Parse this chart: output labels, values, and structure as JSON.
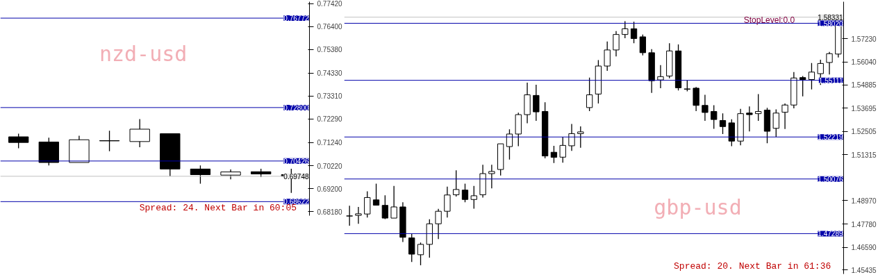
{
  "chart_data": [
    {
      "type": "candlestick",
      "categories": [
        null,
        null,
        null,
        null,
        null,
        null,
        null,
        null,
        null,
        null
      ],
      "ohlc": [
        [
          0.715,
          0.7164,
          0.7099,
          0.7125
        ],
        [
          0.7127,
          0.7146,
          0.7023,
          0.7036
        ],
        [
          0.7036,
          0.7155,
          0.7036,
          0.7137
        ],
        [
          0.7133,
          0.7177,
          0.7086,
          0.7132
        ],
        [
          0.7129,
          0.7229,
          0.7104,
          0.7184
        ],
        [
          0.7164,
          0.7164,
          0.6974,
          0.7007
        ],
        [
          0.7007,
          0.7023,
          0.6942,
          0.6982
        ],
        [
          0.698,
          0.7005,
          0.6961,
          0.6994
        ],
        [
          0.6995,
          0.7008,
          0.6971,
          0.6985
        ],
        [
          0.6982,
          0.7008,
          0.6901,
          0.6975
        ]
      ],
      "ylim": [
        0.68,
        0.775
      ],
      "yticks": [
        {
          "value": 0.7742,
          "label": "0.77420"
        },
        {
          "value": 0.764,
          "label": "0.76400"
        },
        {
          "value": 0.7538,
          "label": "0.75380"
        },
        {
          "value": 0.7433,
          "label": "0.74330"
        },
        {
          "value": 0.7331,
          "label": "0.73310"
        },
        {
          "value": 0.7229,
          "label": "0.72290"
        },
        {
          "value": 0.7124,
          "label": "0.71240"
        },
        {
          "value": 0.7022,
          "label": "0.70220"
        },
        {
          "value": 0.692,
          "label": "0.69200"
        },
        {
          "value": 0.6818,
          "label": "0.68180"
        }
      ],
      "ref_lines": [
        {
          "axis": "y",
          "value": 0.76772,
          "label": "0.76772",
          "color": "#0000aa"
        },
        {
          "axis": "y",
          "value": 0.728,
          "label": "0.72800",
          "color": "#0000aa"
        },
        {
          "axis": "y",
          "value": 0.70426,
          "label": "0.70426",
          "color": "#0000aa"
        },
        {
          "axis": "y",
          "value": 0.68622,
          "label": "0.68622",
          "color": "#0000aa"
        },
        {
          "axis": "y",
          "value": 0.69748,
          "label": "0.69748",
          "color": "#c0c0c0"
        }
      ],
      "annotations": [
        "nzd-usd",
        "Spread: 24. Next Bar in 60:05"
      ],
      "grid": false,
      "tick_labels": "y"
    },
    {
      "type": "candlestick",
      "categories": [
        null,
        null,
        null,
        null,
        null,
        null,
        null,
        null,
        null,
        null,
        null,
        null,
        null,
        null,
        null,
        null,
        null,
        null,
        null,
        null,
        null,
        null,
        null,
        null,
        null,
        null,
        null,
        null,
        null,
        null,
        null,
        null,
        null,
        null,
        null,
        null,
        null,
        null,
        null,
        null,
        null,
        null,
        null,
        null,
        null,
        null,
        null,
        null,
        null,
        null,
        null,
        null,
        null,
        null,
        null,
        null
      ],
      "ohlc": [
        [
          1.4819,
          1.4871,
          1.4769,
          1.4819
        ],
        [
          1.4822,
          1.4865,
          1.4779,
          1.483
        ],
        [
          1.4829,
          1.4945,
          1.4811,
          1.4913
        ],
        [
          1.4901,
          1.4984,
          1.4873,
          1.4874
        ],
        [
          1.4873,
          1.4924,
          1.4803,
          1.4808
        ],
        [
          1.4808,
          1.4972,
          1.4808,
          1.4865
        ],
        [
          1.4865,
          1.4889,
          1.4686,
          1.471
        ],
        [
          1.4707,
          1.4728,
          1.4584,
          1.4624
        ],
        [
          1.4621,
          1.4683,
          1.4567,
          1.4674
        ],
        [
          1.4674,
          1.4802,
          1.4606,
          1.4779
        ],
        [
          1.4779,
          1.4855,
          1.4701,
          1.4843
        ],
        [
          1.4843,
          1.4969,
          1.4811,
          1.4926
        ],
        [
          1.4927,
          1.5052,
          1.4918,
          1.4954
        ],
        [
          1.4951,
          1.4984,
          1.4889,
          1.4903
        ],
        [
          1.4903,
          1.4972,
          1.4856,
          1.4922
        ],
        [
          1.4927,
          1.508,
          1.4913,
          1.5035
        ],
        [
          1.5035,
          1.508,
          1.496,
          1.5046
        ],
        [
          1.5056,
          1.5187,
          1.5025,
          1.5187
        ],
        [
          1.5173,
          1.5261,
          1.5107,
          1.5237
        ],
        [
          1.5237,
          1.5346,
          1.5175,
          1.5336
        ],
        [
          1.5336,
          1.5499,
          1.5292,
          1.5437
        ],
        [
          1.5434,
          1.5489,
          1.5304,
          1.535
        ],
        [
          1.5352,
          1.5399,
          1.5113,
          1.5125
        ],
        [
          1.5144,
          1.5177,
          1.5089,
          1.5118
        ],
        [
          1.5119,
          1.5223,
          1.5091,
          1.5179
        ],
        [
          1.5177,
          1.5288,
          1.5151,
          1.5239
        ],
        [
          1.5239,
          1.5276,
          1.5167,
          1.5248
        ],
        [
          1.5372,
          1.5525,
          1.5354,
          1.5437
        ],
        [
          1.5441,
          1.5614,
          1.5393,
          1.5584
        ],
        [
          1.5584,
          1.5709,
          1.5559,
          1.5666
        ],
        [
          1.5666,
          1.5762,
          1.5633,
          1.5745
        ],
        [
          1.5745,
          1.5813,
          1.5726,
          1.5774
        ],
        [
          1.5774,
          1.581,
          1.57,
          1.5724
        ],
        [
          1.5733,
          1.5745,
          1.5638,
          1.5652
        ],
        [
          1.5652,
          1.567,
          1.5447,
          1.5509
        ],
        [
          1.5513,
          1.5589,
          1.5471,
          1.553
        ],
        [
          1.5533,
          1.57,
          1.5521,
          1.5661
        ],
        [
          1.5661,
          1.5694,
          1.5459,
          1.5473
        ],
        [
          1.5466,
          1.5511,
          1.5455,
          1.5466
        ],
        [
          1.5471,
          1.5477,
          1.5354,
          1.5383
        ],
        [
          1.5383,
          1.5437,
          1.5304,
          1.5347
        ],
        [
          1.5352,
          1.5384,
          1.5264,
          1.5311
        ],
        [
          1.5306,
          1.5342,
          1.5237,
          1.5275
        ],
        [
          1.5294,
          1.5312,
          1.5175,
          1.5201
        ],
        [
          1.5201,
          1.5365,
          1.5179,
          1.5341
        ],
        [
          1.5344,
          1.5378,
          1.525,
          1.5336
        ],
        [
          1.5341,
          1.5441,
          1.5304,
          1.5352
        ],
        [
          1.5359,
          1.5371,
          1.519,
          1.5251
        ],
        [
          1.5266,
          1.5363,
          1.5223,
          1.5344
        ],
        [
          1.5348,
          1.5393,
          1.5263,
          1.5385
        ],
        [
          1.5385,
          1.5553,
          1.5368,
          1.5523
        ],
        [
          1.5525,
          1.5533,
          1.5429,
          1.5515
        ],
        [
          1.5515,
          1.5599,
          1.5465,
          1.5553
        ],
        [
          1.5545,
          1.5616,
          1.5488,
          1.5597
        ],
        [
          1.5602,
          1.5656,
          1.5541,
          1.5647
        ],
        [
          1.5645,
          1.5845,
          1.5628,
          1.5833
        ]
      ],
      "ylim": [
        1.4523,
        1.5912
      ],
      "yticks": [
        {
          "value": 1.5723,
          "label": "1.57230"
        },
        {
          "value": 1.5604,
          "label": "1.56040"
        },
        {
          "value": 1.54885,
          "label": "1.54885"
        },
        {
          "value": 1.53695,
          "label": "1.53695"
        },
        {
          "value": 1.52505,
          "label": "1.52505"
        },
        {
          "value": 1.51315,
          "label": "1.51315"
        },
        {
          "value": 1.4897,
          "label": "1.48970"
        },
        {
          "value": 1.4778,
          "label": "1.47780"
        },
        {
          "value": 1.4659,
          "label": "1.46590"
        },
        {
          "value": 1.45435,
          "label": "1.45435"
        }
      ],
      "ref_lines": [
        {
          "axis": "y",
          "value": 1.5802,
          "label": "1.58020",
          "color": "#0000aa"
        },
        {
          "axis": "y",
          "value": 1.55111,
          "label": "1.55111",
          "color": "#0000aa"
        },
        {
          "axis": "y",
          "value": 1.52219,
          "label": "1.52219",
          "color": "#0000aa"
        },
        {
          "axis": "y",
          "value": 1.50076,
          "label": "1.50076",
          "color": "#0000aa"
        },
        {
          "axis": "y",
          "value": 1.47289,
          "label": "1.47289",
          "color": "#0000aa"
        },
        {
          "axis": "y",
          "value": 1.58331,
          "label": "1.58331",
          "color": "#c0c0c0"
        }
      ],
      "annotations": [
        "gbp-usd",
        "StopLevel:0.0",
        "Spread: 20. Next Bar in 61:36"
      ],
      "grid": false,
      "tick_labels": "y"
    }
  ]
}
